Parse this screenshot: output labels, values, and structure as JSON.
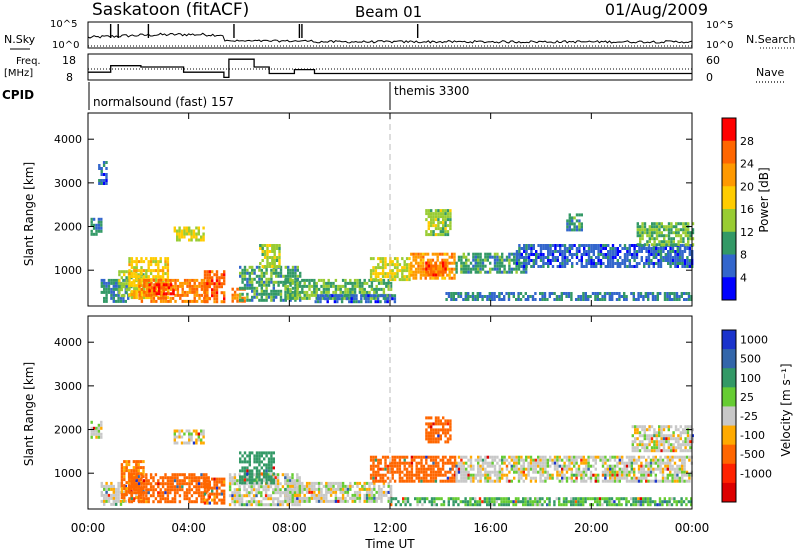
{
  "header": {
    "station": "Saskatoon (fitACF)",
    "beam": "Beam 01",
    "date": "01/Aug/2009"
  },
  "params": {
    "nsky_label": "N.Sky",
    "nsearch_label": "N.Search",
    "nsky_ticks": [
      "10^5",
      "10^0"
    ],
    "nsearch_ticks": [
      "10^5",
      "10^0"
    ],
    "freq_label_1": "Freq.",
    "freq_label_2": "[MHz]",
    "freq_ticks": [
      "18",
      "8"
    ],
    "nave_label": "Nave",
    "nave_ticks": [
      "60",
      "0"
    ],
    "cpid_label": "CPID",
    "cpid_segments": [
      {
        "label": "normalsound (fast) 157",
        "start_hour": 0
      },
      {
        "label": "themis 3300",
        "start_hour": 12
      }
    ]
  },
  "axes": {
    "ylabel": "Slant Range [km]",
    "xlabel": "Time UT",
    "x_ticks": [
      "00:00",
      "04:00",
      "08:00",
      "12:00",
      "16:00",
      "20:00",
      "00:00"
    ],
    "y_ticks": [
      "4000",
      "3000",
      "2000",
      "1000"
    ]
  },
  "power_colorbar": {
    "label": "Power [dB]",
    "ticks": [
      "28",
      "24",
      "20",
      "16",
      "12",
      "8",
      "4"
    ],
    "colors": [
      "#ff0000",
      "#ff6600",
      "#ff9900",
      "#ffcc00",
      "#99cc33",
      "#339966",
      "#3366cc",
      "#0000ff"
    ]
  },
  "velocity_colorbar": {
    "label": "Velocity [m s⁻¹]",
    "ticks": [
      "1000",
      "500",
      "100",
      "25",
      "-25",
      "-100",
      "-500",
      "-1000"
    ],
    "colors": [
      "#1a33cc",
      "#3366aa",
      "#339966",
      "#66cc33",
      "#c8c8c8",
      "#ffaa00",
      "#ff6600",
      "#ff2200",
      "#dd0000"
    ]
  },
  "chart_data": [
    {
      "type": "line",
      "name": "frequency",
      "x": [
        0,
        0.9,
        0.9,
        2.1,
        2.1,
        3.8,
        3.8,
        5.4,
        5.4,
        5.6,
        5.6,
        6.6,
        6.6,
        7.2,
        7.2,
        8.2,
        8.2,
        9.0,
        9.0,
        24
      ],
      "y": [
        11,
        11,
        13.5,
        13.5,
        13,
        13,
        11,
        11,
        9,
        9,
        16,
        16,
        13,
        13,
        10.5,
        10.5,
        12,
        12,
        10.5,
        10.5
      ],
      "ylim": [
        8,
        18
      ]
    },
    {
      "type": "heatmap",
      "name": "power",
      "xlabel": "Time UT",
      "ylabel": "Slant Range [km]",
      "xlim": [
        0,
        24
      ],
      "ylim": [
        180,
        4600
      ],
      "colorbar_label": "Power [dB]",
      "regions": [
        {
          "t0": 0.1,
          "t1": 0.5,
          "r0": 1800,
          "r1": 2200,
          "v": 8
        },
        {
          "t0": 0.4,
          "t1": 0.7,
          "r0": 3000,
          "r1": 3500,
          "v": 6
        },
        {
          "t0": 0.5,
          "t1": 1.6,
          "r0": 300,
          "r1": 800,
          "v": 8
        },
        {
          "t0": 1.2,
          "t1": 2.2,
          "r0": 400,
          "r1": 1000,
          "v": 14
        },
        {
          "t0": 1.6,
          "t1": 3.2,
          "r0": 350,
          "r1": 1300,
          "v": 18
        },
        {
          "t0": 2.0,
          "t1": 4.8,
          "r0": 300,
          "r1": 800,
          "v": 24
        },
        {
          "t0": 2.4,
          "t1": 3.4,
          "r0": 450,
          "r1": 700,
          "v": 29
        },
        {
          "t0": 3.4,
          "t1": 4.6,
          "r0": 1700,
          "r1": 2000,
          "v": 16
        },
        {
          "t0": 4.6,
          "t1": 5.4,
          "r0": 300,
          "r1": 1000,
          "v": 26
        },
        {
          "t0": 5.7,
          "t1": 6.2,
          "r0": 300,
          "r1": 600,
          "v": 24
        },
        {
          "t0": 6.0,
          "t1": 8.4,
          "r0": 300,
          "r1": 1100,
          "v": 10
        },
        {
          "t0": 6.8,
          "t1": 7.6,
          "r0": 1100,
          "r1": 1600,
          "v": 14
        },
        {
          "t0": 7.8,
          "t1": 12.0,
          "r0": 350,
          "r1": 800,
          "v": 12
        },
        {
          "t0": 9.0,
          "t1": 12.2,
          "r0": 250,
          "r1": 450,
          "v": 6
        },
        {
          "t0": 11.2,
          "t1": 12.8,
          "r0": 800,
          "r1": 1300,
          "v": 16
        },
        {
          "t0": 12.8,
          "t1": 14.6,
          "r0": 800,
          "r1": 1400,
          "v": 22
        },
        {
          "t0": 13.4,
          "t1": 14.2,
          "r0": 900,
          "r1": 1200,
          "v": 26
        },
        {
          "t0": 14.6,
          "t1": 17.4,
          "r0": 950,
          "r1": 1400,
          "v": 10
        },
        {
          "t0": 17.0,
          "t1": 24.0,
          "r0": 1100,
          "r1": 1600,
          "v": 6
        },
        {
          "t0": 14.2,
          "t1": 24.0,
          "r0": 300,
          "r1": 500,
          "v": 8
        },
        {
          "t0": 21.8,
          "t1": 24.0,
          "r0": 1600,
          "r1": 2100,
          "v": 12
        },
        {
          "t0": 13.4,
          "t1": 14.4,
          "r0": 1800,
          "r1": 2400,
          "v": 14
        },
        {
          "t0": 19.0,
          "t1": 19.6,
          "r0": 1900,
          "r1": 2300,
          "v": 10
        }
      ]
    },
    {
      "type": "heatmap",
      "name": "velocity",
      "xlabel": "Time UT",
      "ylabel": "Slant Range [km]",
      "xlim": [
        0,
        24
      ],
      "ylim": [
        180,
        4600
      ],
      "colorbar_label": "Velocity [m s⁻¹]",
      "regions": [
        {
          "t0": 0.1,
          "t1": 0.5,
          "r0": 1800,
          "r1": 2200,
          "v": 0
        },
        {
          "t0": 0.5,
          "t1": 1.5,
          "r0": 300,
          "r1": 800,
          "v": 0
        },
        {
          "t0": 1.3,
          "t1": 2.2,
          "r0": 400,
          "r1": 1300,
          "v": -120
        },
        {
          "t0": 1.6,
          "t1": 4.8,
          "r0": 350,
          "r1": 1000,
          "v": -150
        },
        {
          "t0": 3.4,
          "t1": 4.6,
          "r0": 1700,
          "r1": 2000,
          "v": 0
        },
        {
          "t0": 4.6,
          "t1": 5.4,
          "r0": 350,
          "r1": 900,
          "v": -130
        },
        {
          "t0": 5.6,
          "t1": 8.4,
          "r0": 300,
          "r1": 1000,
          "v": 0
        },
        {
          "t0": 6.0,
          "t1": 7.4,
          "r0": 800,
          "r1": 1500,
          "v": 150
        },
        {
          "t0": 7.8,
          "t1": 12.0,
          "r0": 350,
          "r1": 800,
          "v": 0
        },
        {
          "t0": 11.2,
          "t1": 14.6,
          "r0": 800,
          "r1": 1400,
          "v": -140
        },
        {
          "t0": 13.4,
          "t1": 14.4,
          "r0": 1700,
          "r1": 2300,
          "v": -160
        },
        {
          "t0": 14.6,
          "t1": 24.0,
          "r0": 800,
          "r1": 1400,
          "v": 0
        },
        {
          "t0": 12.0,
          "t1": 24.0,
          "r0": 250,
          "r1": 450,
          "v": 60
        },
        {
          "t0": 21.6,
          "t1": 24.0,
          "r0": 1500,
          "r1": 2100,
          "v": 0
        }
      ]
    }
  ]
}
